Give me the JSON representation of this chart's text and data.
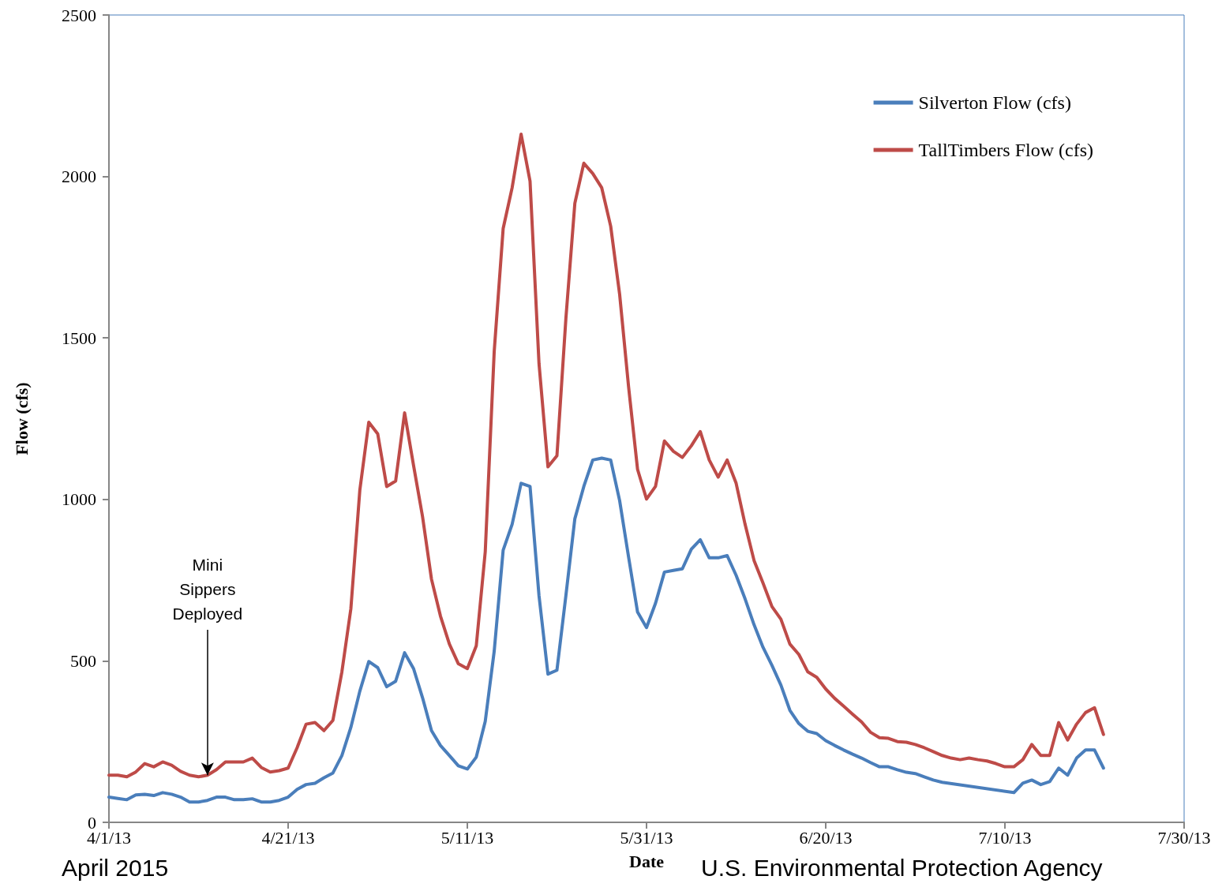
{
  "chart_data": {
    "type": "line",
    "xlabel": "Date",
    "ylabel": "Flow (cfs)",
    "xlim": [
      "2013-04-01",
      "2013-07-30"
    ],
    "xticks": [
      {
        "value": "2013-04-01",
        "label": "4/1/13"
      },
      {
        "value": "2013-04-21",
        "label": "4/21/13"
      },
      {
        "value": "2013-05-11",
        "label": "5/11/13"
      },
      {
        "value": "2013-05-31",
        "label": "5/31/13"
      },
      {
        "value": "2013-06-20",
        "label": "6/20/13"
      },
      {
        "value": "2013-07-10",
        "label": "7/10/13"
      },
      {
        "value": "2013-07-30",
        "label": "7/30/13"
      }
    ],
    "ylim": [
      0,
      2500
    ],
    "yticks": [
      0,
      500,
      1000,
      1500,
      2000,
      2500
    ],
    "grid": false,
    "legend": "top right",
    "marker": "none",
    "line_style": "solid",
    "annotations": [
      {
        "text": "Mini Sippers Deployed",
        "x": "2013-04-12",
        "y": 146
      },
      "April 2015",
      "U.S. Environmental Protection Agency"
    ],
    "series": [
      {
        "name": "Silverton Flow (cfs)",
        "color": "#4a7ebb",
        "x": [
          "2013-04-01",
          "2013-04-02",
          "2013-04-03",
          "2013-04-04",
          "2013-04-05",
          "2013-04-06",
          "2013-04-07",
          "2013-04-08",
          "2013-04-09",
          "2013-04-10",
          "2013-04-11",
          "2013-04-12",
          "2013-04-13",
          "2013-04-14",
          "2013-04-15",
          "2013-04-16",
          "2013-04-17",
          "2013-04-18",
          "2013-04-19",
          "2013-04-20",
          "2013-04-21",
          "2013-04-22",
          "2013-04-23",
          "2013-04-24",
          "2013-04-25",
          "2013-04-26",
          "2013-04-27",
          "2013-04-28",
          "2013-04-29",
          "2013-04-30",
          "2013-05-01",
          "2013-05-02",
          "2013-05-03",
          "2013-05-04",
          "2013-05-05",
          "2013-05-06",
          "2013-05-07",
          "2013-05-08",
          "2013-05-09",
          "2013-05-10",
          "2013-05-11",
          "2013-05-12",
          "2013-05-13",
          "2013-05-14",
          "2013-05-15",
          "2013-05-16",
          "2013-05-17",
          "2013-05-18",
          "2013-05-19",
          "2013-05-20",
          "2013-05-21",
          "2013-05-22",
          "2013-05-23",
          "2013-05-24",
          "2013-05-25",
          "2013-05-26",
          "2013-05-27",
          "2013-05-28",
          "2013-05-29",
          "2013-05-30",
          "2013-05-31",
          "2013-06-01",
          "2013-06-02",
          "2013-06-03",
          "2013-06-04",
          "2013-06-05",
          "2013-06-06",
          "2013-06-07",
          "2013-06-08",
          "2013-06-09",
          "2013-06-10",
          "2013-06-11",
          "2013-06-12",
          "2013-06-13",
          "2013-06-14",
          "2013-06-15",
          "2013-06-16",
          "2013-06-17",
          "2013-06-18",
          "2013-06-19",
          "2013-06-20",
          "2013-06-21",
          "2013-06-22",
          "2013-06-23",
          "2013-06-24",
          "2013-06-25",
          "2013-06-26",
          "2013-06-27",
          "2013-06-28",
          "2013-06-29",
          "2013-06-30",
          "2013-07-01",
          "2013-07-02",
          "2013-07-03",
          "2013-07-11",
          "2013-07-12",
          "2013-07-13",
          "2013-07-14",
          "2013-07-15",
          "2013-07-16",
          "2013-07-17",
          "2013-07-18",
          "2013-07-19",
          "2013-07-20",
          "2013-07-21"
        ],
        "values": [
          78,
          74,
          70,
          85,
          87,
          83,
          92,
          87,
          78,
          63,
          63,
          68,
          78,
          78,
          70,
          70,
          73,
          63,
          63,
          68,
          78,
          102,
          117,
          121,
          138,
          153,
          207,
          294,
          406,
          498,
          479,
          420,
          437,
          525,
          476,
          386,
          284,
          238,
          207,
          175,
          165,
          202,
          313,
          530,
          843,
          923,
          1050,
          1040,
          702,
          459,
          471,
          702,
          940,
          1040,
          1122,
          1128,
          1122,
          996,
          821,
          651,
          603,
          678,
          775,
          780,
          785,
          846,
          875,
          819,
          819,
          826,
          765,
          692,
          612,
          542,
          486,
          425,
          347,
          306,
          282,
          275,
          253,
          238,
          224,
          211,
          199,
          185,
          172,
          172,
          163,
          155,
          151,
          141,
          131,
          124,
          92,
          121,
          131,
          117,
          126,
          168,
          146,
          199,
          224,
          224,
          168
        ]
      },
      {
        "name": "TallTimbers Flow (cfs)",
        "color": "#be4b48",
        "x": [
          "2013-04-01",
          "2013-04-02",
          "2013-04-03",
          "2013-04-04",
          "2013-04-05",
          "2013-04-06",
          "2013-04-07",
          "2013-04-08",
          "2013-04-09",
          "2013-04-10",
          "2013-04-11",
          "2013-04-12",
          "2013-04-13",
          "2013-04-14",
          "2013-04-15",
          "2013-04-16",
          "2013-04-17",
          "2013-04-18",
          "2013-04-19",
          "2013-04-20",
          "2013-04-21",
          "2013-04-22",
          "2013-04-23",
          "2013-04-24",
          "2013-04-25",
          "2013-04-26",
          "2013-04-27",
          "2013-04-28",
          "2013-04-29",
          "2013-04-30",
          "2013-05-01",
          "2013-05-02",
          "2013-05-03",
          "2013-05-04",
          "2013-05-05",
          "2013-05-06",
          "2013-05-07",
          "2013-05-08",
          "2013-05-09",
          "2013-05-10",
          "2013-05-11",
          "2013-05-12",
          "2013-05-13",
          "2013-05-14",
          "2013-05-15",
          "2013-05-16",
          "2013-05-17",
          "2013-05-18",
          "2013-05-19",
          "2013-05-20",
          "2013-05-21",
          "2013-05-22",
          "2013-05-23",
          "2013-05-24",
          "2013-05-25",
          "2013-05-26",
          "2013-05-27",
          "2013-05-28",
          "2013-05-29",
          "2013-05-30",
          "2013-05-31",
          "2013-06-01",
          "2013-06-02",
          "2013-06-03",
          "2013-06-04",
          "2013-06-05",
          "2013-06-06",
          "2013-06-07",
          "2013-06-08",
          "2013-06-09",
          "2013-06-10",
          "2013-06-11",
          "2013-06-12",
          "2013-06-13",
          "2013-06-14",
          "2013-06-15",
          "2013-06-16",
          "2013-06-17",
          "2013-06-18",
          "2013-06-19",
          "2013-06-20",
          "2013-06-21",
          "2013-06-22",
          "2013-06-23",
          "2013-06-24",
          "2013-06-25",
          "2013-06-26",
          "2013-06-27",
          "2013-06-28",
          "2013-06-29",
          "2013-06-30",
          "2013-07-01",
          "2013-07-02",
          "2013-07-03",
          "2013-07-04",
          "2013-07-05",
          "2013-07-06",
          "2013-07-07",
          "2013-07-08",
          "2013-07-09",
          "2013-07-10",
          "2013-07-11",
          "2013-07-12",
          "2013-07-13",
          "2013-07-14",
          "2013-07-15",
          "2013-07-16",
          "2013-07-17",
          "2013-07-18",
          "2013-07-19",
          "2013-07-20",
          "2013-07-21"
        ],
        "values": [
          146,
          146,
          141,
          156,
          182,
          172,
          187,
          177,
          158,
          146,
          141,
          146,
          163,
          187,
          187,
          187,
          199,
          170,
          156,
          160,
          168,
          231,
          304,
          309,
          284,
          316,
          466,
          661,
          1028,
          1239,
          1203,
          1040,
          1057,
          1268,
          1105,
          947,
          753,
          639,
          552,
          491,
          476,
          547,
          838,
          1458,
          1839,
          1965,
          2131,
          1985,
          1421,
          1101,
          1135,
          1560,
          1917,
          2041,
          2009,
          1965,
          1846,
          1635,
          1348,
          1093,
          1001,
          1040,
          1181,
          1149,
          1130,
          1166,
          1210,
          1122,
          1069,
          1122,
          1050,
          923,
          811,
          741,
          668,
          629,
          552,
          520,
          466,
          449,
          413,
          384,
          360,
          335,
          311,
          279,
          262,
          260,
          250,
          248,
          241,
          231,
          219,
          207,
          199,
          194,
          199,
          194,
          190,
          182,
          172,
          172,
          194,
          241,
          207,
          207,
          309,
          255,
          304,
          340,
          355,
          272
        ]
      }
    ]
  }
}
